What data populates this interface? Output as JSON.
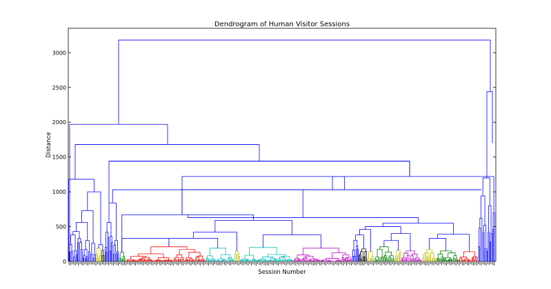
{
  "chart_data": {
    "type": "dendrogram",
    "title": "Dendrogram of Human Visitor Sessions",
    "xlabel": "Session Number",
    "ylabel": "Distance",
    "ylim": [
      0,
      3350
    ],
    "y_ticks": [
      0,
      500,
      1000,
      1500,
      2000,
      2500,
      3000
    ],
    "x_tick_labels_note": "dense illegible session-number leaf labels",
    "link_color_above_threshold": "#0000ff",
    "cluster_colors": [
      "#ff0000",
      "#00bfbf",
      "#bf00bf",
      "#bfbf00",
      "#008000",
      "#000000",
      "#0000ff"
    ],
    "top_merge_heights": [
      3180,
      1970,
      1680,
      1440,
      1220,
      1030,
      670,
      630,
      590,
      420
    ]
  }
}
